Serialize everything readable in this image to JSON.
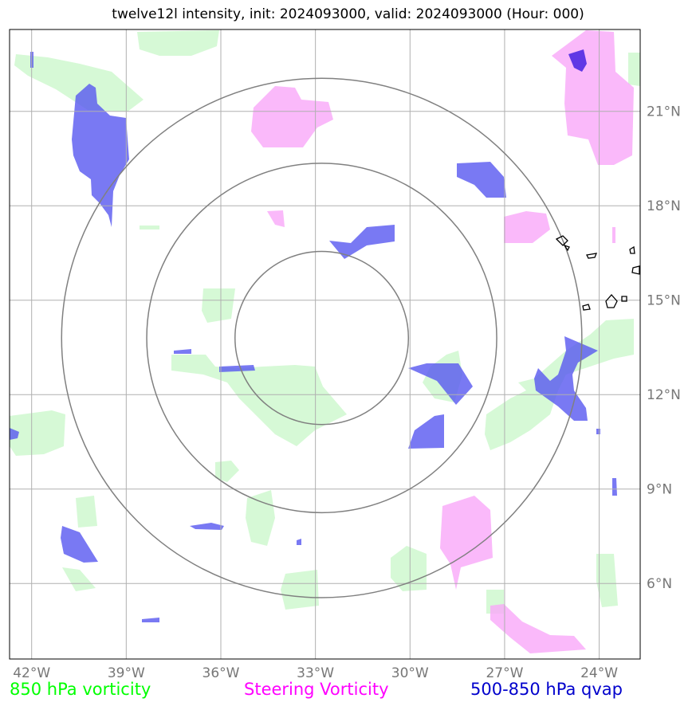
{
  "title": "twelve12l intensity, init: 2024093000, valid: 2024093000 (Hour: 000)",
  "map": {
    "lon_range": [
      -42.7,
      -22.7
    ],
    "lat_range": [
      3.6,
      23.6
    ],
    "lon_ticks": [
      -42,
      -39,
      -36,
      -33,
      -30,
      -27,
      -24
    ],
    "lon_tick_labels": [
      "42°W",
      "39°W",
      "36°W",
      "33°W",
      "30°W",
      "27°W",
      "24°W"
    ],
    "lat_ticks": [
      6,
      9,
      12,
      15,
      18,
      21
    ],
    "lat_tick_labels": [
      "6°N",
      "9°N",
      "12°N",
      "15°N",
      "18°N",
      "21°N"
    ],
    "center": {
      "lon": -32.8,
      "lat": 13.8
    },
    "range_rings_deg": [
      2.75,
      5.55,
      8.25
    ],
    "colors": {
      "grid": "#b0b0b0",
      "ring": "#808080",
      "coast": "#000000",
      "vort850": "#c8f7c8",
      "steering": "#f9a8f9",
      "qvap": "#5858f0"
    }
  },
  "legend": {
    "vort850": {
      "label": "850 hPa vorticity",
      "color": "#00ff00"
    },
    "steering": {
      "label": "Steering Vorticity",
      "color": "#ff00ff"
    },
    "qvap": {
      "label": "500-850 hPa qvap",
      "color": "#0000cc"
    }
  }
}
